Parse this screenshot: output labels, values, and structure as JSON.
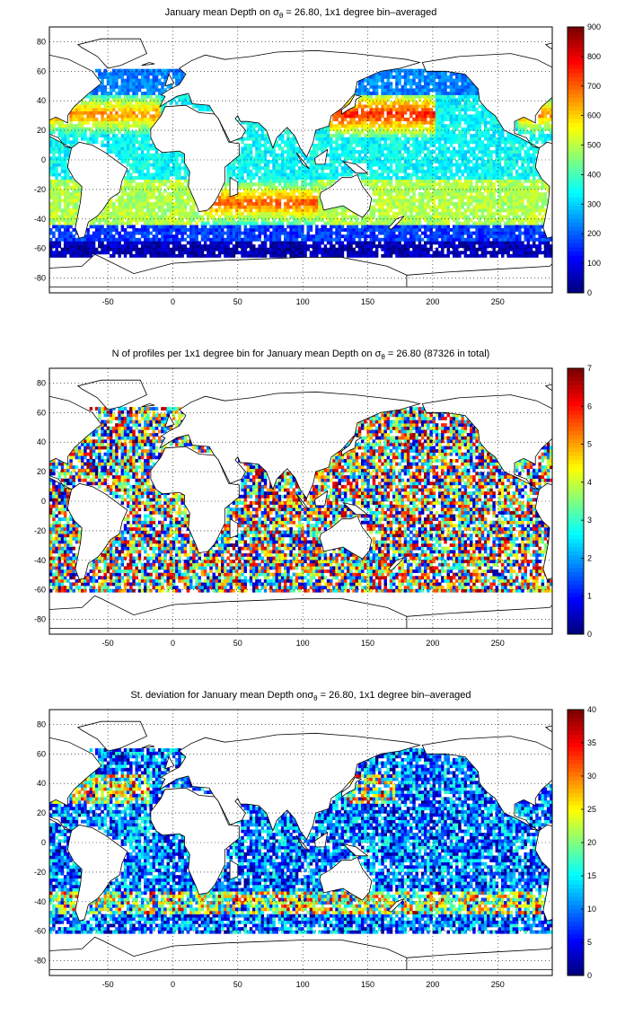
{
  "panels": [
    {
      "id": "depth",
      "title_pre": "January mean Depth on ",
      "title_sym": "σ",
      "title_sub": "θ",
      "title_post": " = 26.80, 1x1 degree bin–averaged",
      "colorbar_ticks": [
        "900",
        "800",
        "700",
        "600",
        "500",
        "400",
        "300",
        "200",
        "100",
        "0"
      ],
      "x_ticks": [
        "-50",
        "0",
        "50",
        "100",
        "150",
        "200",
        "250"
      ],
      "y_ticks": [
        "80",
        "60",
        "40",
        "20",
        "0",
        "-20",
        "-40",
        "-60",
        "-80"
      ]
    },
    {
      "id": "nprofiles",
      "title_pre": "N of profiles per 1x1 degree bin for January mean Depth on ",
      "title_sym": "σ",
      "title_sub": "θ",
      "title_post": " = 26.80 (87326 in total)",
      "colorbar_ticks": [
        "7",
        "6",
        "5",
        "4",
        "3",
        "2",
        "1",
        "0"
      ],
      "x_ticks": [
        "-50",
        "0",
        "50",
        "100",
        "150",
        "200",
        "250"
      ],
      "y_ticks": [
        "80",
        "60",
        "40",
        "20",
        "0",
        "-20",
        "-40",
        "-60",
        "-80"
      ]
    },
    {
      "id": "stdev",
      "title_pre": "St. deviation for January mean Depth on",
      "title_sym": "σ",
      "title_sub": "θ",
      "title_post": " = 26.80, 1x1 degree bin–averaged",
      "colorbar_ticks": [
        "40",
        "35",
        "30",
        "25",
        "20",
        "15",
        "10",
        "5",
        "0"
      ],
      "x_ticks": [
        "-50",
        "0",
        "50",
        "100",
        "150",
        "200",
        "250"
      ],
      "y_ticks": [
        "80",
        "60",
        "40",
        "20",
        "0",
        "-20",
        "-40",
        "-60",
        "-80"
      ]
    }
  ],
  "colors": {
    "jet_low": "#00008f",
    "jet_high": "#800000"
  }
}
